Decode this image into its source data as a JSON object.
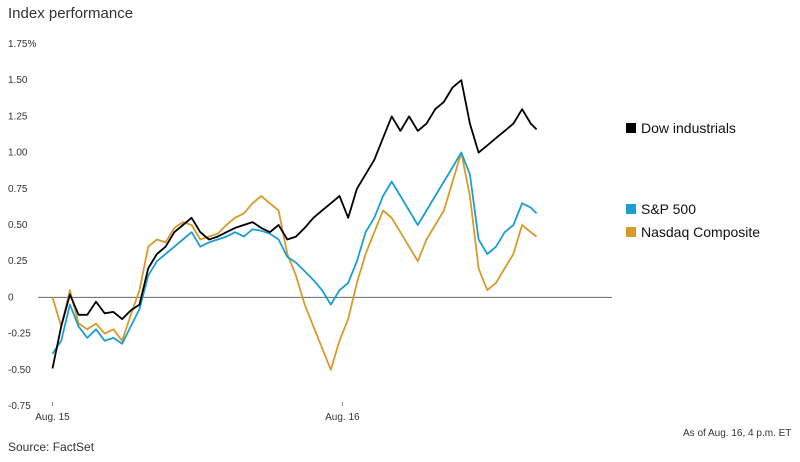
{
  "title": "Index performance",
  "source": "Source: FactSet",
  "as_of": "As of Aug. 16, 4 p.m. ET",
  "chart_data": {
    "type": "line",
    "title": "Index performance",
    "xlabel": "",
    "ylabel": "",
    "ylim": [
      -0.75,
      1.75
    ],
    "y_ticks": [
      -0.75,
      -0.5,
      -0.25,
      0,
      0.25,
      0.5,
      0.75,
      1.0,
      1.25,
      1.5,
      1.75
    ],
    "y_tick_labels": [
      "-0.75",
      "-0.50",
      "-0.25",
      "0",
      "0.25",
      "0.50",
      "0.75",
      "1.00",
      "1.25",
      "1.50",
      "1.75%"
    ],
    "x_ticks": [
      {
        "label": "Aug. 15",
        "x": 0
      },
      {
        "label": "Aug. 16",
        "x": 1
      }
    ],
    "xlim": [
      -0.05,
      1.93
    ],
    "zero_line": true,
    "grid": false,
    "legend_position": "right",
    "series": [
      {
        "name": "Dow industrials",
        "color": "#000000",
        "points": [
          [
            0.0,
            -0.49
          ],
          [
            0.03,
            -0.2
          ],
          [
            0.06,
            0.02
          ],
          [
            0.09,
            -0.12
          ],
          [
            0.12,
            -0.12
          ],
          [
            0.15,
            -0.03
          ],
          [
            0.18,
            -0.11
          ],
          [
            0.21,
            -0.1
          ],
          [
            0.24,
            -0.15
          ],
          [
            0.27,
            -0.09
          ],
          [
            0.3,
            -0.05
          ],
          [
            0.33,
            0.2
          ],
          [
            0.36,
            0.3
          ],
          [
            0.39,
            0.35
          ],
          [
            0.42,
            0.45
          ],
          [
            0.45,
            0.5
          ],
          [
            0.48,
            0.55
          ],
          [
            0.51,
            0.45
          ],
          [
            0.54,
            0.4
          ],
          [
            0.57,
            0.42
          ],
          [
            0.6,
            0.45
          ],
          [
            0.63,
            0.48
          ],
          [
            0.66,
            0.5
          ],
          [
            0.69,
            0.52
          ],
          [
            0.72,
            0.48
          ],
          [
            0.75,
            0.45
          ],
          [
            0.78,
            0.5
          ],
          [
            0.81,
            0.4
          ],
          [
            0.84,
            0.42
          ],
          [
            0.87,
            0.48
          ],
          [
            0.9,
            0.55
          ],
          [
            0.93,
            0.6
          ],
          [
            0.96,
            0.65
          ],
          [
            0.99,
            0.7
          ],
          [
            1.02,
            0.55
          ],
          [
            1.05,
            0.75
          ],
          [
            1.08,
            0.85
          ],
          [
            1.11,
            0.95
          ],
          [
            1.14,
            1.1
          ],
          [
            1.17,
            1.25
          ],
          [
            1.2,
            1.15
          ],
          [
            1.23,
            1.25
          ],
          [
            1.26,
            1.15
          ],
          [
            1.29,
            1.2
          ],
          [
            1.32,
            1.3
          ],
          [
            1.35,
            1.35
          ],
          [
            1.38,
            1.45
          ],
          [
            1.41,
            1.5
          ],
          [
            1.44,
            1.2
          ],
          [
            1.47,
            1.0
          ],
          [
            1.5,
            1.05
          ],
          [
            1.53,
            1.1
          ],
          [
            1.56,
            1.15
          ],
          [
            1.59,
            1.2
          ],
          [
            1.62,
            1.3
          ],
          [
            1.65,
            1.2
          ],
          [
            1.67,
            1.16
          ]
        ]
      },
      {
        "name": "S&P 500",
        "color": "#1a9fd0",
        "points": [
          [
            0.0,
            -0.39
          ],
          [
            0.03,
            -0.3
          ],
          [
            0.06,
            -0.05
          ],
          [
            0.09,
            -0.2
          ],
          [
            0.12,
            -0.28
          ],
          [
            0.15,
            -0.22
          ],
          [
            0.18,
            -0.3
          ],
          [
            0.21,
            -0.28
          ],
          [
            0.24,
            -0.32
          ],
          [
            0.27,
            -0.2
          ],
          [
            0.3,
            -0.08
          ],
          [
            0.33,
            0.15
          ],
          [
            0.36,
            0.25
          ],
          [
            0.39,
            0.3
          ],
          [
            0.42,
            0.35
          ],
          [
            0.45,
            0.4
          ],
          [
            0.48,
            0.45
          ],
          [
            0.51,
            0.35
          ],
          [
            0.54,
            0.38
          ],
          [
            0.57,
            0.4
          ],
          [
            0.6,
            0.42
          ],
          [
            0.63,
            0.45
          ],
          [
            0.66,
            0.42
          ],
          [
            0.69,
            0.47
          ],
          [
            0.72,
            0.46
          ],
          [
            0.75,
            0.44
          ],
          [
            0.78,
            0.4
          ],
          [
            0.81,
            0.28
          ],
          [
            0.84,
            0.24
          ],
          [
            0.87,
            0.18
          ],
          [
            0.9,
            0.12
          ],
          [
            0.93,
            0.05
          ],
          [
            0.96,
            -0.05
          ],
          [
            0.99,
            0.05
          ],
          [
            1.02,
            0.1
          ],
          [
            1.05,
            0.25
          ],
          [
            1.08,
            0.45
          ],
          [
            1.11,
            0.55
          ],
          [
            1.14,
            0.7
          ],
          [
            1.17,
            0.8
          ],
          [
            1.2,
            0.7
          ],
          [
            1.23,
            0.6
          ],
          [
            1.26,
            0.5
          ],
          [
            1.29,
            0.6
          ],
          [
            1.32,
            0.7
          ],
          [
            1.35,
            0.8
          ],
          [
            1.38,
            0.9
          ],
          [
            1.41,
            1.0
          ],
          [
            1.44,
            0.85
          ],
          [
            1.47,
            0.4
          ],
          [
            1.5,
            0.3
          ],
          [
            1.53,
            0.35
          ],
          [
            1.56,
            0.45
          ],
          [
            1.59,
            0.5
          ],
          [
            1.62,
            0.65
          ],
          [
            1.65,
            0.62
          ],
          [
            1.67,
            0.58
          ]
        ]
      },
      {
        "name": "Nasdaq Composite",
        "color": "#d99a2b",
        "points": [
          [
            0.0,
            0.0
          ],
          [
            0.03,
            -0.2
          ],
          [
            0.06,
            0.05
          ],
          [
            0.09,
            -0.18
          ],
          [
            0.12,
            -0.22
          ],
          [
            0.15,
            -0.18
          ],
          [
            0.18,
            -0.25
          ],
          [
            0.21,
            -0.22
          ],
          [
            0.24,
            -0.3
          ],
          [
            0.27,
            -0.12
          ],
          [
            0.3,
            0.05
          ],
          [
            0.33,
            0.35
          ],
          [
            0.36,
            0.4
          ],
          [
            0.39,
            0.38
          ],
          [
            0.42,
            0.48
          ],
          [
            0.45,
            0.52
          ],
          [
            0.48,
            0.5
          ],
          [
            0.51,
            0.4
          ],
          [
            0.54,
            0.42
          ],
          [
            0.57,
            0.44
          ],
          [
            0.6,
            0.5
          ],
          [
            0.63,
            0.55
          ],
          [
            0.66,
            0.58
          ],
          [
            0.69,
            0.65
          ],
          [
            0.72,
            0.7
          ],
          [
            0.75,
            0.65
          ],
          [
            0.78,
            0.6
          ],
          [
            0.81,
            0.3
          ],
          [
            0.84,
            0.15
          ],
          [
            0.87,
            -0.05
          ],
          [
            0.9,
            -0.2
          ],
          [
            0.93,
            -0.35
          ],
          [
            0.96,
            -0.5
          ],
          [
            0.99,
            -0.3
          ],
          [
            1.02,
            -0.15
          ],
          [
            1.05,
            0.1
          ],
          [
            1.08,
            0.3
          ],
          [
            1.11,
            0.45
          ],
          [
            1.14,
            0.6
          ],
          [
            1.17,
            0.55
          ],
          [
            1.2,
            0.45
          ],
          [
            1.23,
            0.35
          ],
          [
            1.26,
            0.25
          ],
          [
            1.29,
            0.4
          ],
          [
            1.32,
            0.5
          ],
          [
            1.35,
            0.6
          ],
          [
            1.38,
            0.8
          ],
          [
            1.41,
            1.0
          ],
          [
            1.44,
            0.7
          ],
          [
            1.47,
            0.2
          ],
          [
            1.5,
            0.05
          ],
          [
            1.53,
            0.1
          ],
          [
            1.56,
            0.2
          ],
          [
            1.59,
            0.3
          ],
          [
            1.62,
            0.5
          ],
          [
            1.65,
            0.45
          ],
          [
            1.67,
            0.42
          ]
        ]
      }
    ]
  }
}
